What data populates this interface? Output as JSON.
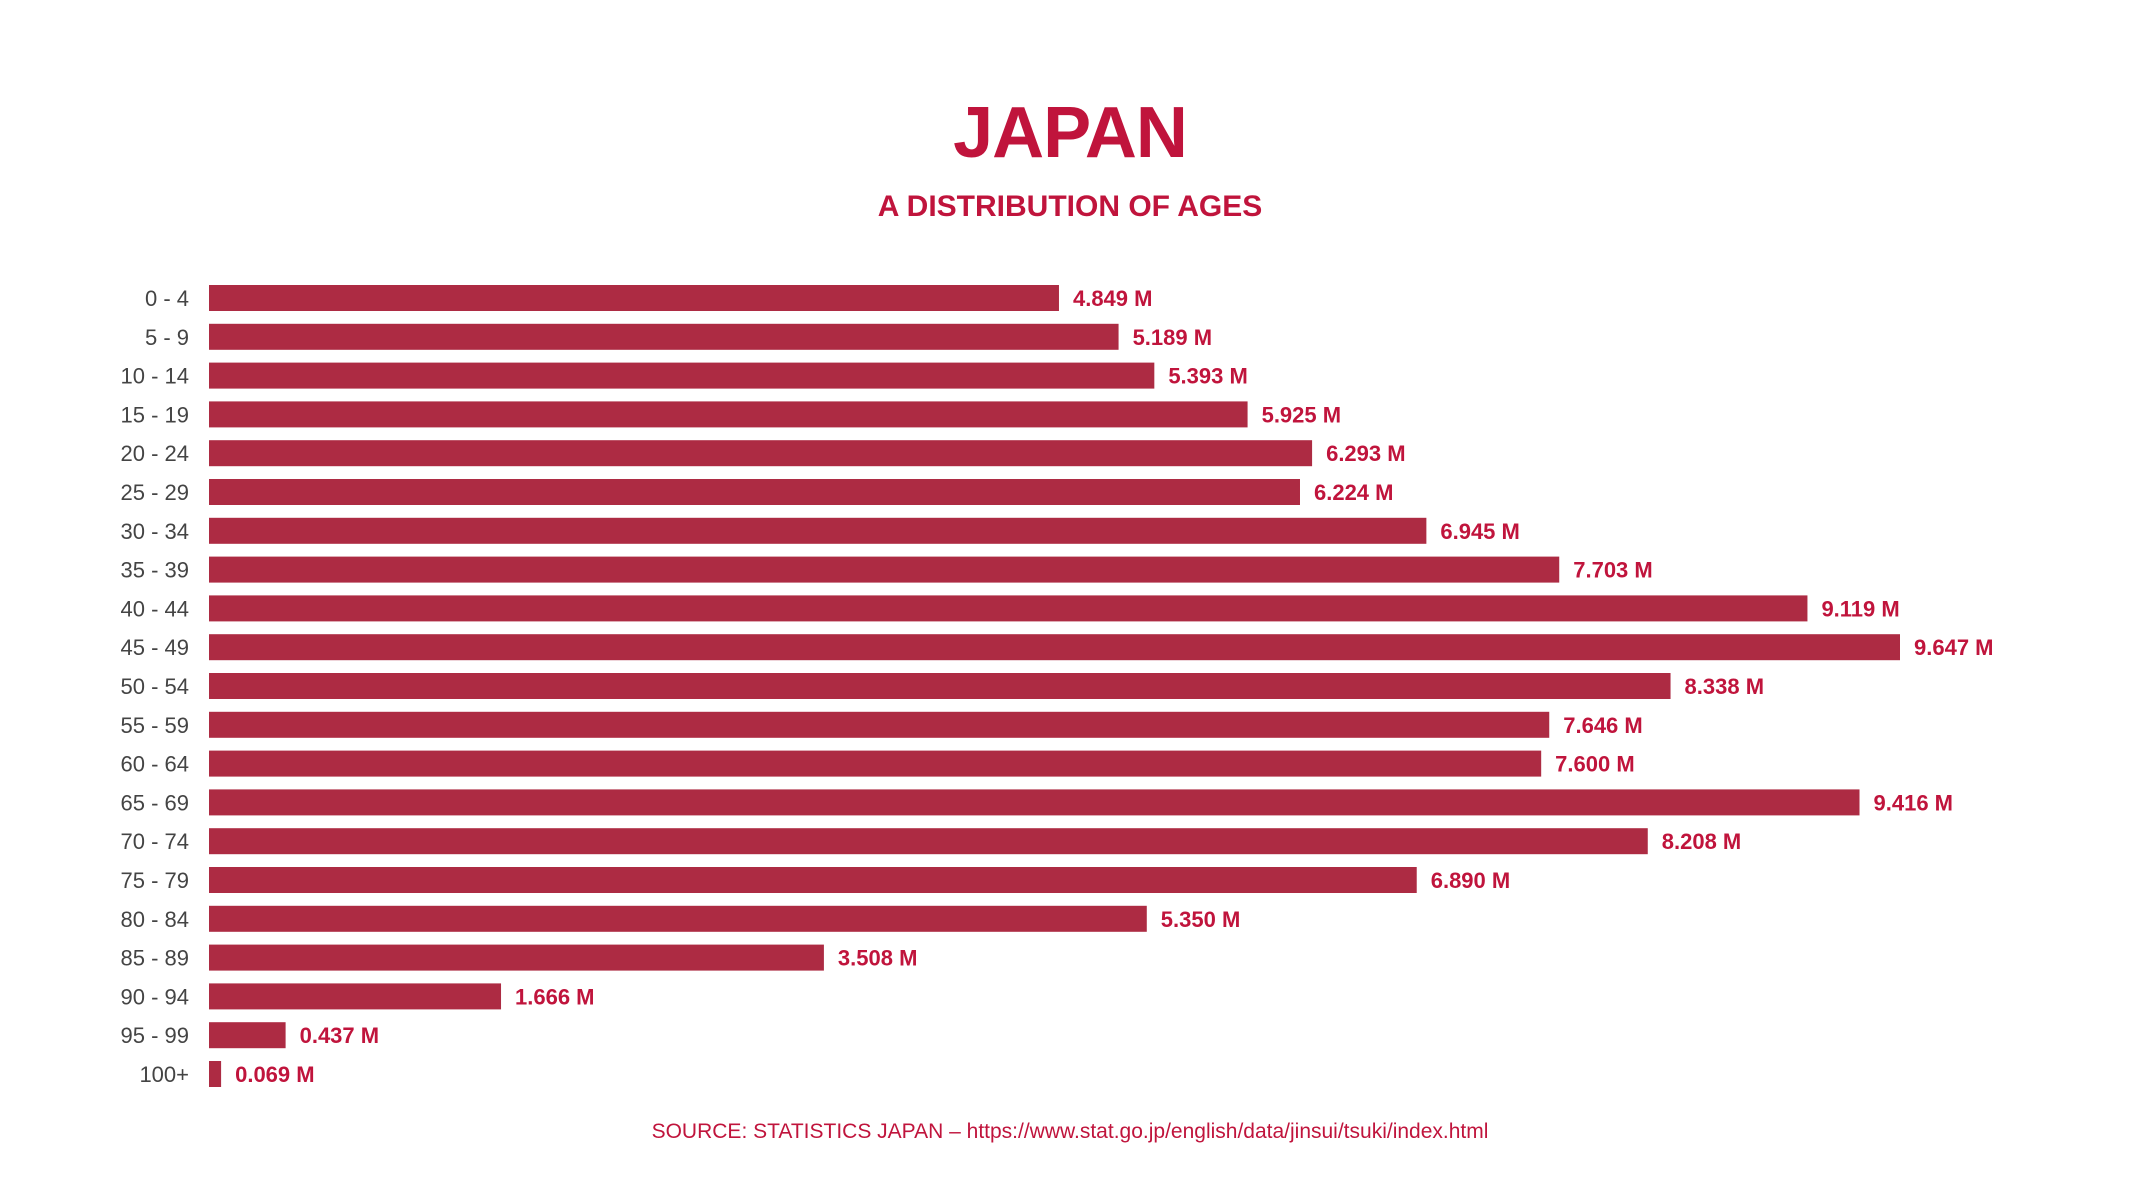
{
  "chart_data": {
    "type": "bar",
    "orientation": "horizontal",
    "title": "JAPAN",
    "subtitle": "A DISTRIBUTION OF AGES",
    "source": "SOURCE: STATISTICS JAPAN – https://www.stat.go.jp/english/data/jinsui/tsuki/index.html",
    "categories": [
      "0 - 4",
      "5 - 9",
      "10 - 14",
      "15 - 19",
      "20 - 24",
      "25 - 29",
      "30 - 34",
      "35 - 39",
      "40 - 44",
      "45 - 49",
      "50 - 54",
      "55 - 59",
      "60 - 64",
      "65 - 69",
      "70 - 74",
      "75 - 79",
      "80 - 84",
      "85 - 89",
      "90 - 94",
      "95 - 99",
      "100+"
    ],
    "values": [
      4.849,
      5.189,
      5.393,
      5.925,
      6.293,
      6.224,
      6.945,
      7.703,
      9.119,
      9.647,
      8.338,
      7.646,
      7.6,
      9.416,
      8.208,
      6.89,
      5.35,
      3.508,
      1.666,
      0.437,
      0.069
    ],
    "value_labels": [
      "4.849 M",
      "5.189 M",
      "5.393 M",
      "5.925 M",
      "6.293 M",
      "6.224 M",
      "6.945 M",
      "7.703 M",
      "9.119 M",
      "9.647 M",
      "8.338 M",
      "7.646 M",
      "7.600 M",
      "9.416 M",
      "8.208 M",
      "6.890 M",
      "5.350 M",
      "3.508 M",
      "1.666 M",
      "0.437 M",
      "0.069 M"
    ],
    "unit": "M",
    "xlim": [
      0,
      9.647
    ],
    "grid": false,
    "colors": {
      "bar": "#ad2b43",
      "accent": "#c0143c",
      "category_text": "#444444"
    }
  }
}
